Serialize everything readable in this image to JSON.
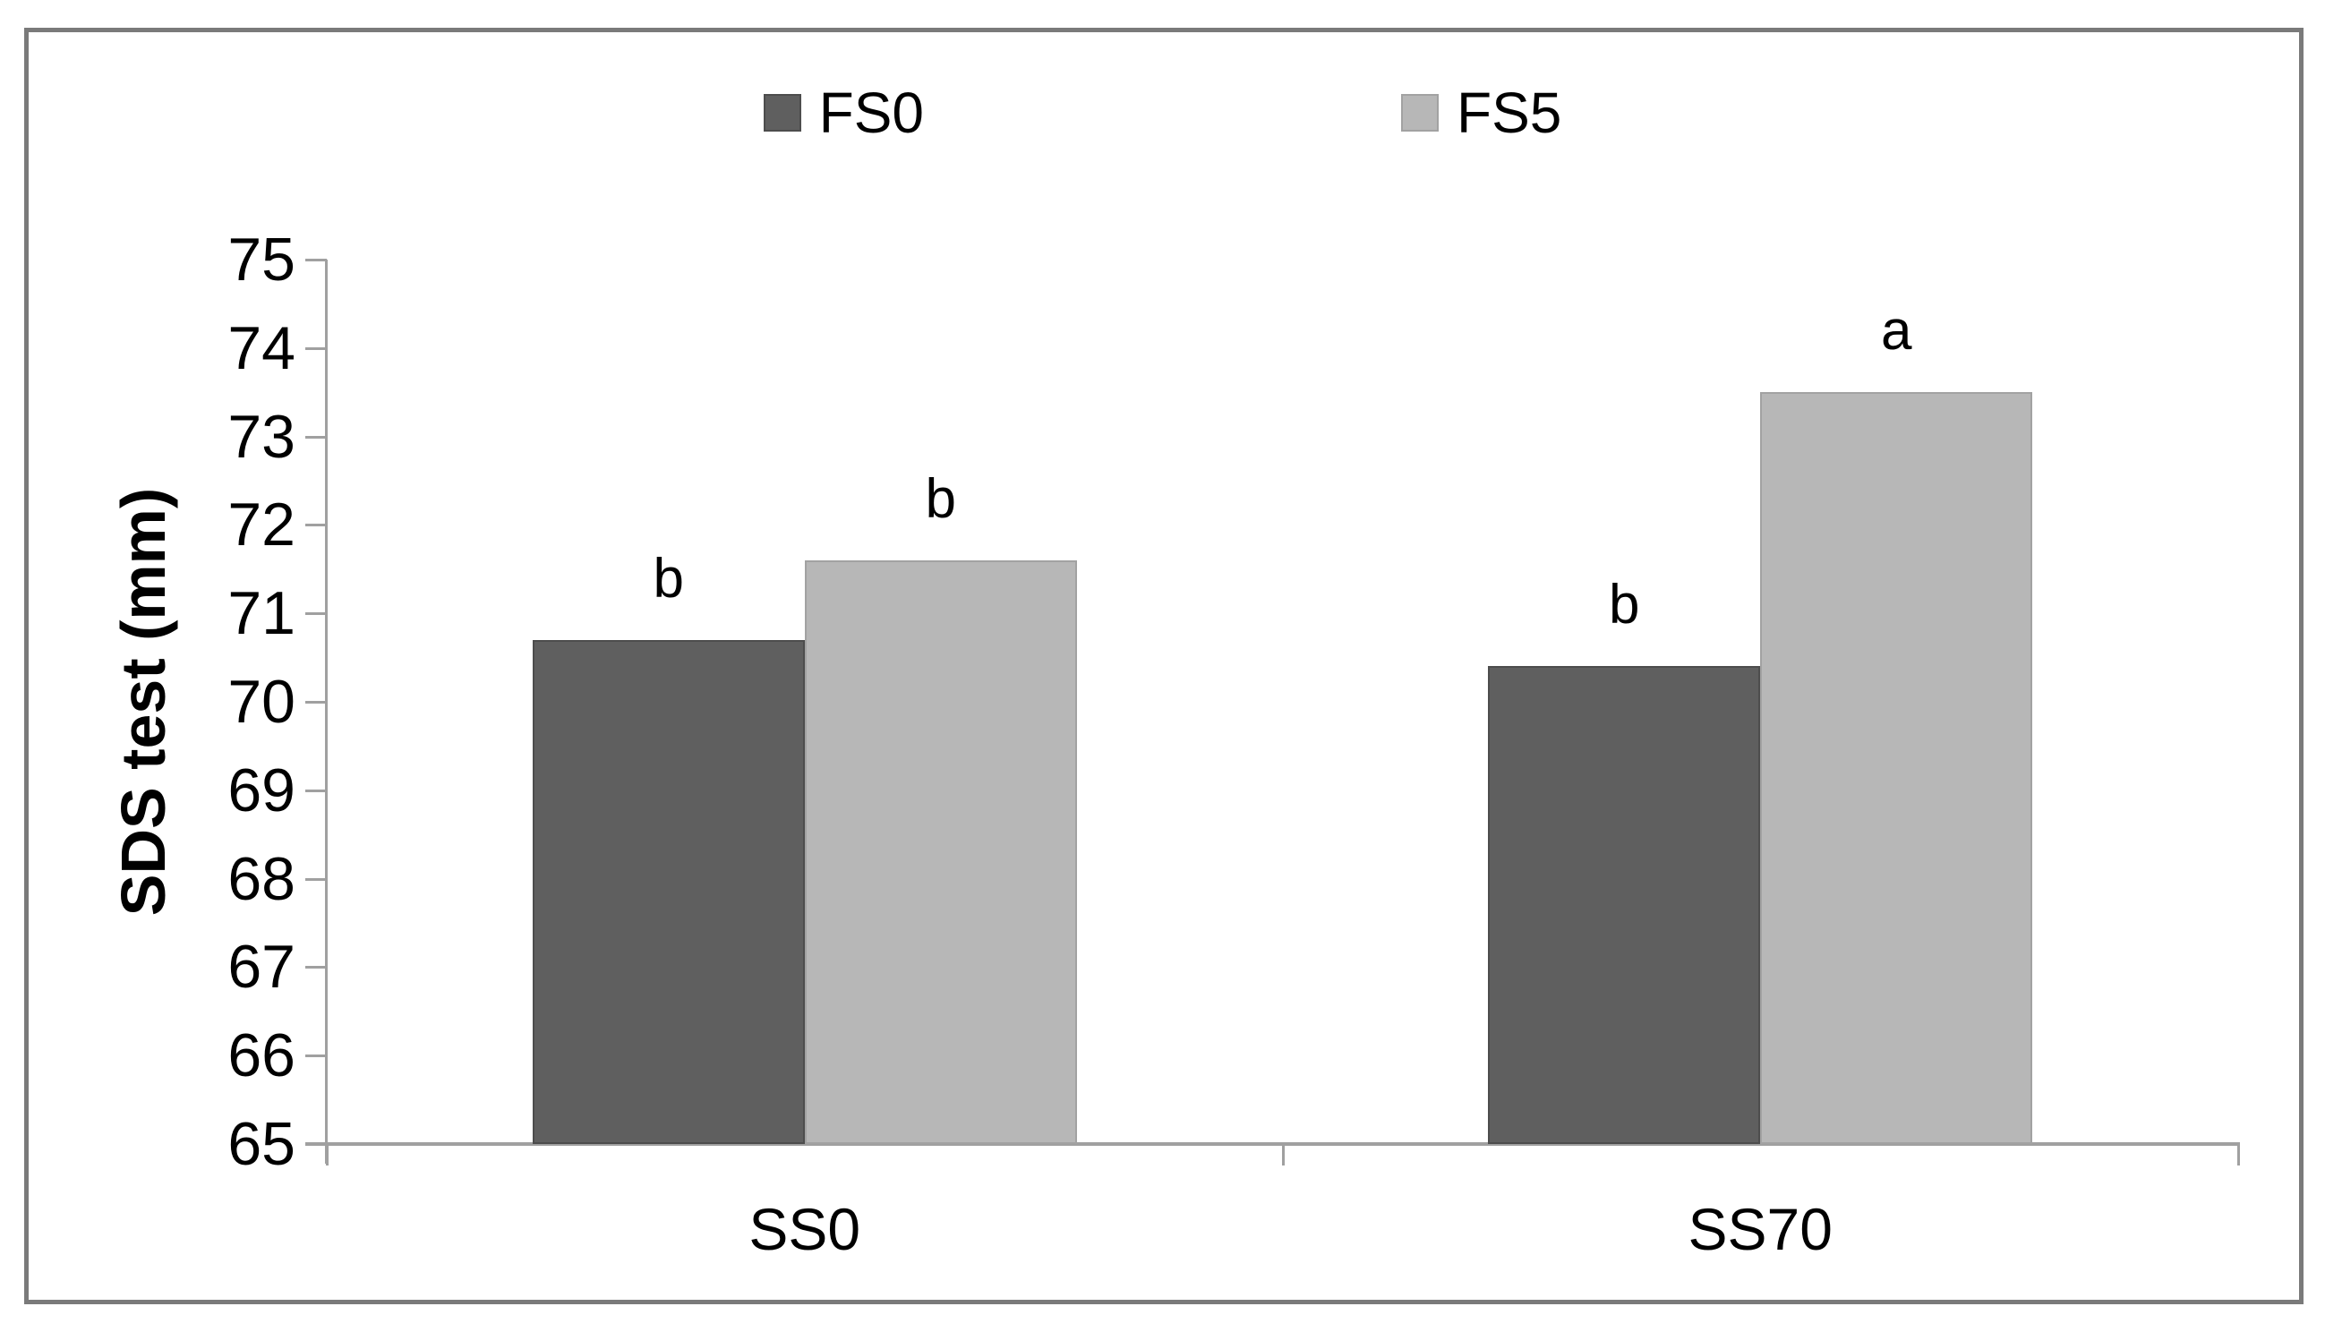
{
  "figure": {
    "background": "#ffffff",
    "frame_color": "#7a7a7a",
    "axis_color": "#a0a0a0",
    "text_color": "#000000"
  },
  "chart_data": {
    "type": "bar",
    "title": "",
    "xlabel": "",
    "ylabel": "SDS test (mm)",
    "ylim": [
      65,
      75
    ],
    "yticks": [
      65,
      66,
      67,
      68,
      69,
      70,
      71,
      72,
      73,
      74,
      75
    ],
    "grid": false,
    "legend_position": "top",
    "categories": [
      "SS0",
      "SS70"
    ],
    "series": [
      {
        "name": "FS0",
        "color": "#5f5f5f",
        "border_color": "#4d4d4d",
        "values": [
          70.7,
          70.4
        ],
        "bar_labels": [
          "b",
          "b"
        ]
      },
      {
        "name": "FS5",
        "color": "#b7b7b7",
        "border_color": "#a2a2a2",
        "values": [
          71.6,
          73.5
        ],
        "bar_labels": [
          "b",
          "a"
        ]
      }
    ]
  }
}
